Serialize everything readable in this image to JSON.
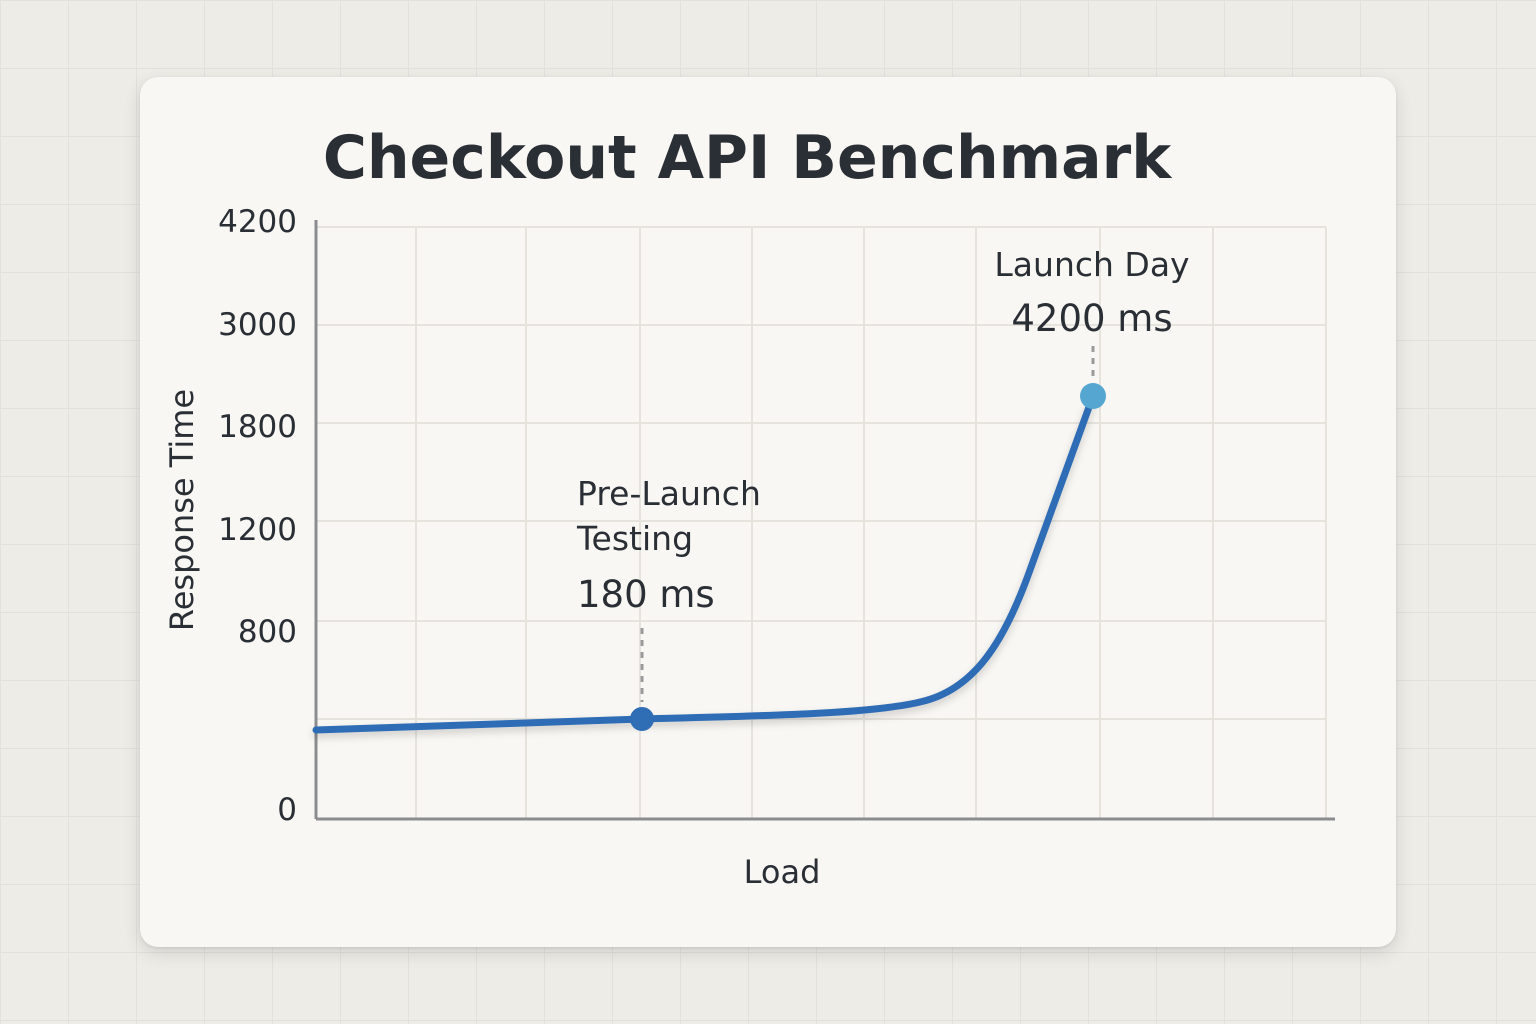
{
  "chart_data": {
    "type": "line",
    "title": "Checkout API Benchmark",
    "xlabel": "Load",
    "ylabel": "Response Time",
    "y_ticks": [
      "4200",
      "3000",
      "1800",
      "1200",
      "800",
      "0"
    ],
    "grid": true,
    "series": [
      {
        "name": "Response Time",
        "color": "#2f6db5"
      }
    ],
    "annotations": [
      {
        "id": "pre-launch",
        "label_lines": [
          "Pre-Launch",
          "Testing"
        ],
        "value_text": "180 ms",
        "color": "#2f6db5"
      },
      {
        "id": "launch-day",
        "label_lines": [
          "Launch Day"
        ],
        "value_text": "4200 ms",
        "color": "#55a7d1"
      }
    ]
  }
}
